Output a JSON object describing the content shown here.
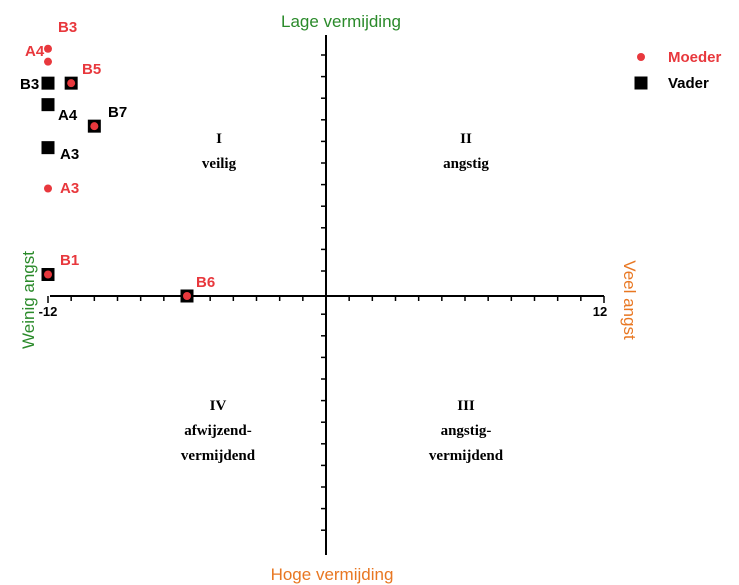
{
  "chart_data": {
    "type": "scatter",
    "title": "",
    "axis_titles": {
      "top": "Lage vermijding",
      "bottom": "Hoge vermijding",
      "left": "Weinig angst",
      "right": "Veel angst"
    },
    "xlim": [
      -12,
      12
    ],
    "ylim": [
      -12,
      12
    ],
    "tick_labels": {
      "x_min": "-12",
      "x_max": "12"
    },
    "grid": false,
    "legend_position": "top-right",
    "colors": {
      "moeder": "#e8383d",
      "vader": "#000000",
      "axis_title_green": "#2a8a2a",
      "axis_title_orange": "#e87722"
    },
    "series": [
      {
        "name": "Moeder",
        "marker": "circle",
        "points": [
          {
            "label": "B3",
            "x": -12,
            "y": 11.5
          },
          {
            "label": "A4",
            "x": -12,
            "y": 10.9
          },
          {
            "label": "B5",
            "x": -11,
            "y": 9.9
          },
          {
            "label": "B7",
            "x": -10,
            "y": 7.9
          },
          {
            "label": "A3",
            "x": -12,
            "y": 5.0
          },
          {
            "label": "B1",
            "x": -12,
            "y": 1.0
          },
          {
            "label": "B6",
            "x": -6,
            "y": 0
          }
        ]
      },
      {
        "name": "Vader",
        "marker": "square",
        "points": [
          {
            "label": "B3",
            "x": -12,
            "y": 9.9
          },
          {
            "label": "A4",
            "x": -12,
            "y": 8.9
          },
          {
            "label": "B5",
            "x": -11,
            "y": 9.9
          },
          {
            "label": "B7",
            "x": -10,
            "y": 7.9
          },
          {
            "label": "A3",
            "x": -12,
            "y": 6.9
          },
          {
            "label": "B1",
            "x": -12,
            "y": 1.0
          },
          {
            "label": "B6",
            "x": -6,
            "y": 0
          }
        ]
      }
    ],
    "point_labels": [
      {
        "text": "B3",
        "series": "Moeder"
      },
      {
        "text": "A4",
        "series": "Moeder"
      },
      {
        "text": "B5",
        "series": "Moeder"
      },
      {
        "text": "B7",
        "series": "Vader"
      },
      {
        "text": "B3",
        "series": "Vader"
      },
      {
        "text": "A4",
        "series": "Vader"
      },
      {
        "text": "A3",
        "series": "Vader"
      },
      {
        "text": "A3",
        "series": "Moeder"
      },
      {
        "text": "B1",
        "series": "Moeder"
      },
      {
        "text": "B6",
        "series": "Moeder"
      }
    ],
    "quadrants": [
      {
        "numeral": "I",
        "lines": [
          "veilig"
        ]
      },
      {
        "numeral": "II",
        "lines": [
          "angstig"
        ]
      },
      {
        "numeral": "III",
        "lines": [
          "angstig-",
          "vermijdend"
        ]
      },
      {
        "numeral": "IV",
        "lines": [
          "afwijzend-",
          "vermijdend"
        ]
      }
    ]
  }
}
